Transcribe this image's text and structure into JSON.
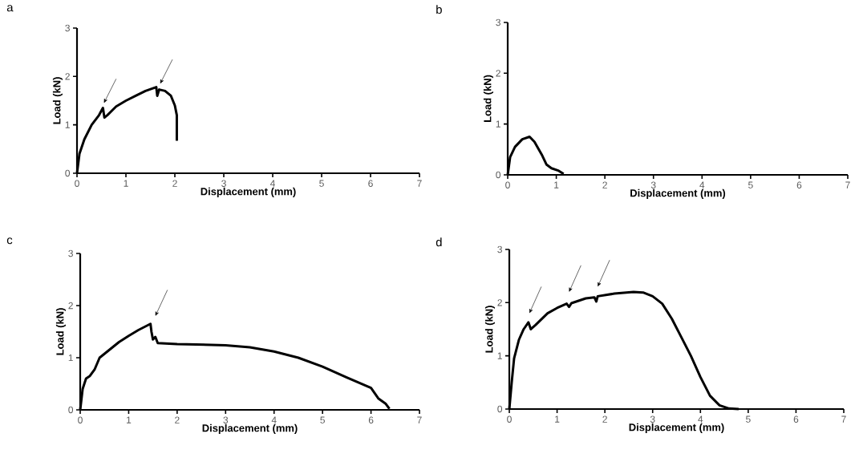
{
  "chart_data": [
    {
      "type": "line",
      "title": "a",
      "xlabel": "Displacement (mm)",
      "ylabel": "Load (kN)",
      "xlim": [
        0,
        7
      ],
      "ylim": [
        0,
        3
      ],
      "xticks": [
        0,
        1,
        2,
        3,
        4,
        5,
        6,
        7
      ],
      "yticks": [
        0,
        1,
        2,
        3
      ],
      "grid": false,
      "marker": "none",
      "line_style": "solid",
      "series": [
        {
          "color": "#000000",
          "x": [
            0,
            0.05,
            0.15,
            0.3,
            0.45,
            0.53,
            0.56,
            0.62,
            0.8,
            1.0,
            1.2,
            1.4,
            1.62,
            1.64,
            1.68,
            1.8,
            1.92,
            2.0,
            2.04,
            2.04
          ],
          "values": [
            0,
            0.4,
            0.7,
            1.0,
            1.2,
            1.35,
            1.15,
            1.2,
            1.38,
            1.5,
            1.6,
            1.7,
            1.78,
            1.6,
            1.73,
            1.7,
            1.6,
            1.4,
            1.2,
            0.67
          ]
        }
      ]
    },
    {
      "type": "line",
      "title": "b",
      "xlabel": "Displacement (mm)",
      "ylabel": "Load (kN)",
      "xlim": [
        0,
        7
      ],
      "ylim": [
        0,
        3
      ],
      "xticks": [
        0,
        1,
        2,
        3,
        4,
        5,
        6,
        7
      ],
      "yticks": [
        0,
        1,
        2,
        3
      ],
      "grid": false,
      "marker": "none",
      "line_style": "solid",
      "series": [
        {
          "color": "#000000",
          "x": [
            0,
            0.05,
            0.15,
            0.3,
            0.45,
            0.55,
            0.7,
            0.8,
            0.9,
            1.05,
            1.15
          ],
          "values": [
            0,
            0.35,
            0.55,
            0.7,
            0.75,
            0.65,
            0.4,
            0.2,
            0.13,
            0.08,
            0.02
          ]
        }
      ]
    },
    {
      "type": "line",
      "title": "c",
      "xlabel": "Displacement (mm)",
      "ylabel": "Load (kN)",
      "xlim": [
        0,
        7
      ],
      "ylim": [
        0,
        3
      ],
      "xticks": [
        0,
        1,
        2,
        3,
        4,
        5,
        6,
        7
      ],
      "yticks": [
        0,
        1,
        2,
        3
      ],
      "grid": false,
      "marker": "none",
      "line_style": "solid",
      "series": [
        {
          "color": "#000000",
          "x": [
            0,
            0.05,
            0.12,
            0.2,
            0.3,
            0.4,
            0.6,
            0.8,
            1.0,
            1.2,
            1.45,
            1.47,
            1.5,
            1.55,
            1.6,
            2.0,
            3.0,
            3.5,
            4.0,
            4.5,
            5.0,
            5.5,
            6.0,
            6.15,
            6.3,
            6.38
          ],
          "values": [
            0,
            0.4,
            0.6,
            0.65,
            0.78,
            1.0,
            1.15,
            1.3,
            1.42,
            1.53,
            1.65,
            1.5,
            1.35,
            1.4,
            1.28,
            1.26,
            1.24,
            1.2,
            1.12,
            1.0,
            0.83,
            0.62,
            0.42,
            0.22,
            0.12,
            0.02
          ]
        }
      ]
    },
    {
      "type": "line",
      "title": "d",
      "xlabel": "Displacement (mm)",
      "ylabel": "Load (kN)",
      "xlim": [
        0,
        7
      ],
      "ylim": [
        0,
        3
      ],
      "xticks": [
        0,
        1,
        2,
        3,
        4,
        5,
        6,
        7
      ],
      "yticks": [
        0,
        1,
        2,
        3
      ],
      "grid": false,
      "marker": "none",
      "line_style": "solid",
      "series": [
        {
          "color": "#000000",
          "x": [
            0,
            0.05,
            0.1,
            0.2,
            0.3,
            0.4,
            0.45,
            0.55,
            0.8,
            1.0,
            1.2,
            1.25,
            1.3,
            1.6,
            1.78,
            1.82,
            1.85,
            2.2,
            2.6,
            2.8,
            3.0,
            3.2,
            3.4,
            3.6,
            3.8,
            4.0,
            4.2,
            4.4,
            4.6,
            4.8
          ],
          "values": [
            0,
            0.5,
            0.95,
            1.3,
            1.5,
            1.63,
            1.5,
            1.58,
            1.8,
            1.9,
            1.98,
            1.92,
            1.99,
            2.08,
            2.1,
            2.02,
            2.12,
            2.17,
            2.2,
            2.19,
            2.12,
            1.98,
            1.7,
            1.35,
            1.0,
            0.6,
            0.25,
            0.07,
            0.01,
            0.0
          ]
        }
      ]
    }
  ]
}
